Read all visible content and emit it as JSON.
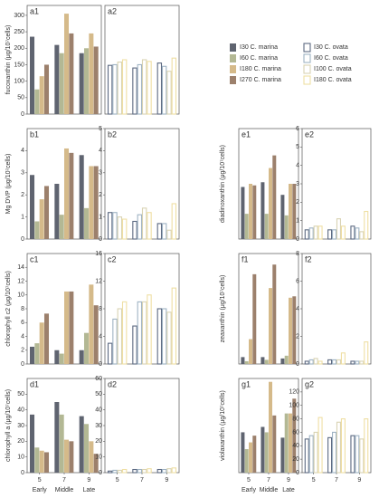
{
  "x_axis": {
    "categories": [
      "5",
      "7",
      "9"
    ],
    "stages": [
      "Early",
      "Middle",
      "Late"
    ]
  },
  "legend": {
    "marina": [
      {
        "name": "I30 C. marina",
        "color": "#5f6470"
      },
      {
        "name": "I60 C. marina",
        "color": "#b3b894"
      },
      {
        "name": "I180 C. marina",
        "color": "#d5ba8a"
      },
      {
        "name": "I270 C. marina",
        "color": "#9c806c"
      }
    ],
    "ovata": [
      {
        "name": "I30 C. ovata",
        "color": "#5d6a82"
      },
      {
        "name": "I60 C. ovata",
        "color": "#9fb3c4"
      },
      {
        "name": "I100 C. ovata",
        "color": "#d9d3b3"
      },
      {
        "name": "I180 C. ovata",
        "color": "#efdfa4"
      }
    ]
  },
  "chart_data": [
    {
      "type": "bar",
      "label": "a1",
      "group": "marina",
      "ylabel": "fucoxanthin (μg/10⁷cells)",
      "ylim": [
        0,
        330
      ],
      "yticks": [
        0,
        50,
        100,
        150,
        200,
        250,
        300
      ],
      "series": [
        {
          "values": [
            235,
            210,
            185
          ]
        },
        {
          "values": [
            75,
            185,
            200
          ]
        },
        {
          "values": [
            115,
            305,
            245
          ]
        },
        {
          "values": [
            150,
            245,
            205
          ]
        }
      ]
    },
    {
      "type": "bar",
      "label": "a2",
      "group": "ovata",
      "ylim": [
        0,
        330
      ],
      "series": [
        {
          "values": [
            148,
            140,
            155
          ]
        },
        {
          "values": [
            150,
            150,
            145
          ]
        },
        {
          "values": [
            158,
            165,
            130
          ]
        },
        {
          "values": [
            165,
            160,
            170
          ]
        }
      ]
    },
    {
      "type": "bar",
      "label": "b1",
      "group": "marina",
      "ylabel": "Mg DVP (μg/10⁷cells)",
      "ylim": [
        0,
        5
      ],
      "yticks": [
        0,
        1,
        2,
        3,
        4
      ],
      "series": [
        {
          "values": [
            2.9,
            2.5,
            3.8
          ]
        },
        {
          "values": [
            0.8,
            1.1,
            1.4
          ]
        },
        {
          "values": [
            1.8,
            4.1,
            3.3
          ]
        },
        {
          "values": [
            2.4,
            3.9,
            3.3
          ]
        }
      ]
    },
    {
      "type": "bar",
      "label": "b2",
      "group": "ovata",
      "ylim": [
        0,
        5
      ],
      "yticks": [
        0,
        1,
        2,
        3,
        4,
        5
      ],
      "series": [
        {
          "values": [
            1.2,
            0.8,
            0.7
          ]
        },
        {
          "values": [
            1.2,
            1.1,
            0.7
          ]
        },
        {
          "values": [
            1.0,
            1.4,
            0.4
          ]
        },
        {
          "values": [
            0.9,
            1.2,
            1.6
          ]
        }
      ]
    },
    {
      "type": "bar",
      "label": "c1",
      "group": "marina",
      "ylabel": "chlorophyll c2 (μg/10⁷cells)",
      "ylim": [
        0,
        16
      ],
      "yticks": [
        0,
        2,
        4,
        6,
        8,
        10,
        12,
        14
      ],
      "series": [
        {
          "values": [
            2.5,
            2,
            2
          ]
        },
        {
          "values": [
            3,
            1.5,
            4.5
          ]
        },
        {
          "values": [
            6,
            10.5,
            11.5
          ]
        },
        {
          "values": [
            7.3,
            10.5,
            8.5
          ]
        }
      ]
    },
    {
      "type": "bar",
      "label": "c2",
      "group": "ovata",
      "ylim": [
        0,
        16
      ],
      "yticks": [
        0,
        4,
        8,
        12,
        16
      ],
      "series": [
        {
          "values": [
            3,
            5.5,
            8
          ]
        },
        {
          "values": [
            6.5,
            9,
            8
          ]
        },
        {
          "values": [
            8,
            9,
            7.5
          ]
        },
        {
          "values": [
            9,
            10,
            11
          ]
        }
      ]
    },
    {
      "type": "bar",
      "label": "d1",
      "group": "marina",
      "ylabel": "chlorophyll a (μg/10⁷cells)",
      "ylim": [
        0,
        60
      ],
      "yticks": [
        0,
        10,
        20,
        30,
        40,
        50
      ],
      "series": [
        {
          "values": [
            37,
            45,
            36
          ]
        },
        {
          "values": [
            16,
            37,
            31
          ]
        },
        {
          "values": [
            14,
            21,
            20
          ]
        },
        {
          "values": [
            13,
            20,
            12
          ]
        }
      ]
    },
    {
      "type": "bar",
      "label": "d2",
      "group": "ovata",
      "ylim": [
        0,
        60
      ],
      "yticks": [
        0,
        10,
        20,
        30,
        40,
        50,
        60
      ],
      "series": [
        {
          "values": [
            1,
            2,
            2
          ]
        },
        {
          "values": [
            1.5,
            2,
            2
          ]
        },
        {
          "values": [
            1.5,
            2,
            2.5
          ]
        },
        {
          "values": [
            2,
            2.5,
            3
          ]
        }
      ]
    },
    {
      "type": "bar",
      "label": "e1",
      "group": "marina",
      "ylabel": "diadinoxanthin (μg/10⁷cells)",
      "ylim": [
        0,
        7
      ],
      "series": [
        {
          "values": [
            3.3,
            3.6,
            2.8
          ]
        },
        {
          "values": [
            1.6,
            1.6,
            1.5
          ]
        },
        {
          "values": [
            3.5,
            4.5,
            3.5
          ]
        },
        {
          "values": [
            3.4,
            5.3,
            3.5
          ]
        }
      ]
    },
    {
      "type": "bar",
      "label": "e2",
      "group": "ovata",
      "ylim": [
        0,
        6
      ],
      "yticks": [
        0,
        1,
        2,
        3,
        4,
        5,
        6
      ],
      "series": [
        {
          "values": [
            0.5,
            0.5,
            0.7
          ]
        },
        {
          "values": [
            0.6,
            0.5,
            0.6
          ]
        },
        {
          "values": [
            0.7,
            1.1,
            0.4
          ]
        },
        {
          "values": [
            0.7,
            0.7,
            1.5
          ]
        }
      ]
    },
    {
      "type": "bar",
      "label": "f1",
      "group": "marina",
      "ylabel": "zeaxanthin (μg/10⁷cells)",
      "ylim": [
        0,
        8
      ],
      "series": [
        {
          "values": [
            0.5,
            0.5,
            0.4
          ]
        },
        {
          "values": [
            0.2,
            0.3,
            0.6
          ]
        },
        {
          "values": [
            1.8,
            5.5,
            4.8
          ]
        },
        {
          "values": [
            6.5,
            7.2,
            4.9
          ]
        }
      ]
    },
    {
      "type": "bar",
      "label": "f2",
      "group": "ovata",
      "ylim": [
        0,
        8
      ],
      "yticks": [
        0,
        2,
        4,
        6,
        8
      ],
      "series": [
        {
          "values": [
            0.2,
            0.3,
            0.2
          ]
        },
        {
          "values": [
            0.3,
            0.3,
            0.2
          ]
        },
        {
          "values": [
            0.4,
            0.3,
            0.2
          ]
        },
        {
          "values": [
            0.2,
            0.8,
            1.6
          ]
        }
      ]
    },
    {
      "type": "bar",
      "label": "g1",
      "group": "marina",
      "ylabel": "violaxanthin (μg/10⁷cells)",
      "ylim": [
        0,
        140
      ],
      "series": [
        {
          "values": [
            60,
            68,
            52
          ]
        },
        {
          "values": [
            35,
            60,
            88
          ]
        },
        {
          "values": [
            45,
            135,
            88
          ]
        },
        {
          "values": [
            55,
            85,
            110
          ]
        }
      ]
    },
    {
      "type": "bar",
      "label": "g2",
      "group": "ovata",
      "ylim": [
        0,
        140
      ],
      "yticks": [
        0,
        20,
        40,
        60,
        80,
        100,
        120
      ],
      "series": [
        {
          "values": [
            50,
            52,
            55
          ]
        },
        {
          "values": [
            55,
            60,
            55
          ]
        },
        {
          "values": [
            60,
            75,
            50
          ]
        },
        {
          "values": [
            82,
            80,
            80
          ]
        }
      ]
    }
  ]
}
